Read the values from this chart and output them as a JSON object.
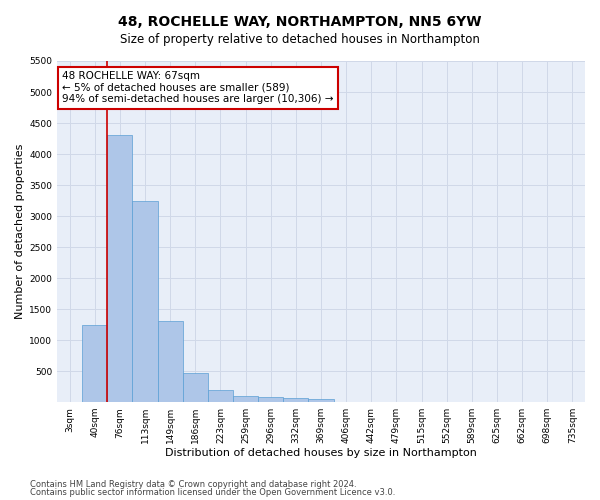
{
  "title": "48, ROCHELLE WAY, NORTHAMPTON, NN5 6YW",
  "subtitle": "Size of property relative to detached houses in Northampton",
  "xlabel": "Distribution of detached houses by size in Northampton",
  "ylabel": "Number of detached properties",
  "footnote1": "Contains HM Land Registry data © Crown copyright and database right 2024.",
  "footnote2": "Contains public sector information licensed under the Open Government Licence v3.0.",
  "categories": [
    "3sqm",
    "40sqm",
    "76sqm",
    "113sqm",
    "149sqm",
    "186sqm",
    "223sqm",
    "259sqm",
    "296sqm",
    "332sqm",
    "369sqm",
    "406sqm",
    "442sqm",
    "479sqm",
    "515sqm",
    "552sqm",
    "589sqm",
    "625sqm",
    "662sqm",
    "698sqm",
    "735sqm"
  ],
  "values": [
    0,
    1250,
    4300,
    3250,
    1300,
    475,
    200,
    100,
    80,
    60,
    50,
    0,
    0,
    0,
    0,
    0,
    0,
    0,
    0,
    0,
    0
  ],
  "bar_color": "#aec6e8",
  "bar_edge_color": "#5a9fd4",
  "grid_color": "#d0d8e8",
  "background_color": "#e8eef8",
  "annotation_box_text": "48 ROCHELLE WAY: 67sqm\n← 5% of detached houses are smaller (589)\n94% of semi-detached houses are larger (10,306) →",
  "annotation_box_color": "#ffffff",
  "annotation_box_edge_color": "#cc0000",
  "vline_x": 1.5,
  "vline_color": "#cc0000",
  "ylim": [
    0,
    5500
  ],
  "yticks": [
    0,
    500,
    1000,
    1500,
    2000,
    2500,
    3000,
    3500,
    4000,
    4500,
    5000,
    5500
  ],
  "title_fontsize": 10,
  "subtitle_fontsize": 8.5,
  "xlabel_fontsize": 8,
  "ylabel_fontsize": 8,
  "tick_fontsize": 6.5,
  "annot_fontsize": 7.5,
  "footnote_fontsize": 6
}
